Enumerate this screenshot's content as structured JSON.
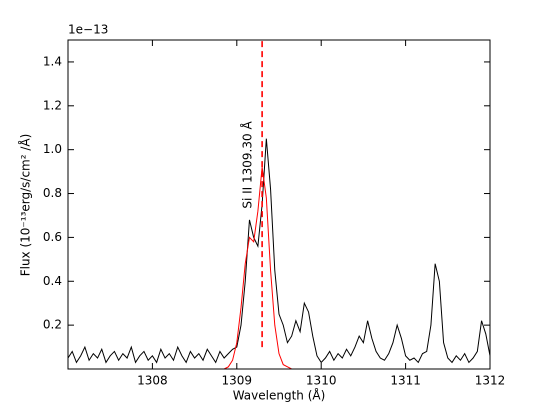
{
  "chart_data": {
    "type": "line",
    "x_label": "Wavelength (Å)",
    "y_label": "Flux (10⁻¹³erg/s/cm² /Å)",
    "y_offset_label": "1e−13",
    "annotation": "Si II   1309.30 Å",
    "xlim": [
      1307,
      1312
    ],
    "xticks": [
      1308,
      1309,
      1310,
      1311,
      1312
    ],
    "ylim": [
      0,
      1.5
    ],
    "yticks": [
      0.2,
      0.4,
      0.6,
      0.8,
      1.0,
      1.2,
      1.4
    ],
    "vline": {
      "x": 1309.3,
      "y": [
        0.1,
        1.5
      ],
      "color": "#ff0000"
    },
    "series": [
      {
        "color": "#000000",
        "x": [
          1307.0,
          1307.05,
          1307.1,
          1307.15,
          1307.2,
          1307.25,
          1307.3,
          1307.35,
          1307.4,
          1307.45,
          1307.5,
          1307.55,
          1307.6,
          1307.65,
          1307.7,
          1307.75,
          1307.8,
          1307.85,
          1307.9,
          1307.95,
          1308.0,
          1308.05,
          1308.1,
          1308.15,
          1308.2,
          1308.25,
          1308.3,
          1308.35,
          1308.4,
          1308.45,
          1308.5,
          1308.55,
          1308.6,
          1308.65,
          1308.7,
          1308.75,
          1308.8,
          1308.85,
          1308.9,
          1308.95,
          1309.0,
          1309.05,
          1309.1,
          1309.15,
          1309.2,
          1309.25,
          1309.3,
          1309.35,
          1309.4,
          1309.45,
          1309.5,
          1309.55,
          1309.6,
          1309.65,
          1309.7,
          1309.75,
          1309.8,
          1309.85,
          1309.9,
          1309.95,
          1310.0,
          1310.05,
          1310.1,
          1310.15,
          1310.2,
          1310.25,
          1310.3,
          1310.35,
          1310.4,
          1310.45,
          1310.5,
          1310.55,
          1310.6,
          1310.65,
          1310.7,
          1310.75,
          1310.8,
          1310.85,
          1310.9,
          1310.95,
          1311.0,
          1311.05,
          1311.1,
          1311.15,
          1311.2,
          1311.25,
          1311.3,
          1311.35,
          1311.4,
          1311.45,
          1311.5,
          1311.55,
          1311.6,
          1311.65,
          1311.7,
          1311.75,
          1311.8,
          1311.85,
          1311.9,
          1311.95,
          1312.0
        ],
        "values": [
          0.05,
          0.08,
          0.03,
          0.06,
          0.1,
          0.04,
          0.07,
          0.05,
          0.09,
          0.03,
          0.06,
          0.08,
          0.04,
          0.07,
          0.05,
          0.1,
          0.03,
          0.06,
          0.08,
          0.04,
          0.06,
          0.03,
          0.09,
          0.05,
          0.07,
          0.04,
          0.1,
          0.06,
          0.03,
          0.08,
          0.05,
          0.07,
          0.04,
          0.09,
          0.06,
          0.03,
          0.08,
          0.05,
          0.07,
          0.09,
          0.1,
          0.2,
          0.4,
          0.68,
          0.6,
          0.56,
          0.75,
          1.05,
          0.82,
          0.45,
          0.25,
          0.2,
          0.12,
          0.15,
          0.22,
          0.17,
          0.3,
          0.26,
          0.15,
          0.06,
          0.03,
          0.05,
          0.08,
          0.04,
          0.07,
          0.05,
          0.09,
          0.06,
          0.1,
          0.15,
          0.12,
          0.22,
          0.14,
          0.08,
          0.05,
          0.04,
          0.07,
          0.12,
          0.2,
          0.14,
          0.06,
          0.04,
          0.05,
          0.03,
          0.07,
          0.08,
          0.2,
          0.48,
          0.4,
          0.12,
          0.05,
          0.03,
          0.06,
          0.04,
          0.07,
          0.03,
          0.05,
          0.08,
          0.22,
          0.16,
          0.06
        ]
      },
      {
        "color": "#ff0000",
        "x": [
          1308.85,
          1308.9,
          1308.95,
          1309.0,
          1309.05,
          1309.1,
          1309.15,
          1309.2,
          1309.25,
          1309.3,
          1309.35,
          1309.4,
          1309.45,
          1309.5,
          1309.55,
          1309.6,
          1309.65,
          1309.7,
          1309.75,
          1309.8
        ],
        "values": [
          0,
          0.01,
          0.04,
          0.12,
          0.28,
          0.48,
          0.6,
          0.58,
          0.72,
          0.92,
          0.78,
          0.45,
          0.2,
          0.07,
          0.02,
          0.01,
          0,
          0,
          0,
          0
        ]
      }
    ]
  }
}
